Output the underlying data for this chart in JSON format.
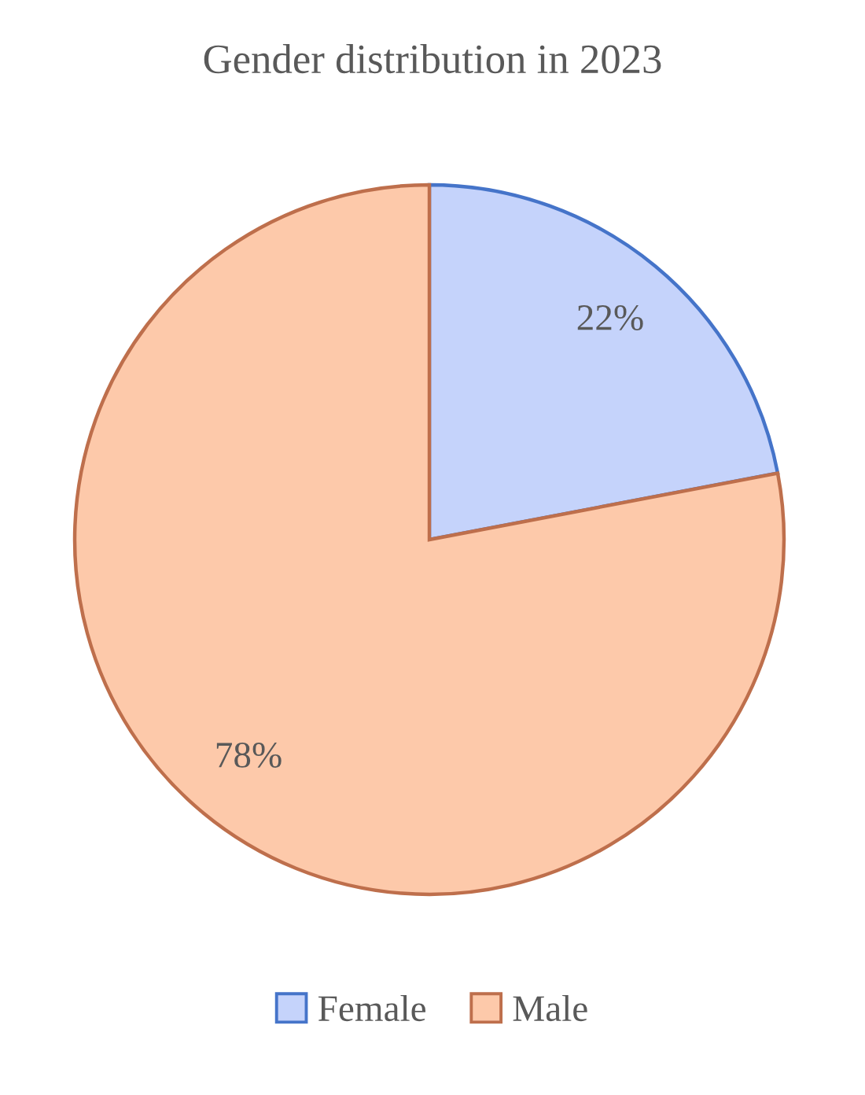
{
  "chart_data": {
    "type": "pie",
    "title": "Gender distribution in 2023",
    "categories": [
      "Female",
      "Male"
    ],
    "values": [
      22,
      78
    ],
    "value_labels": [
      "22%",
      "78%"
    ],
    "colors": [
      "#c5d3fb",
      "#fdc9aa"
    ],
    "legend": "bottom"
  }
}
